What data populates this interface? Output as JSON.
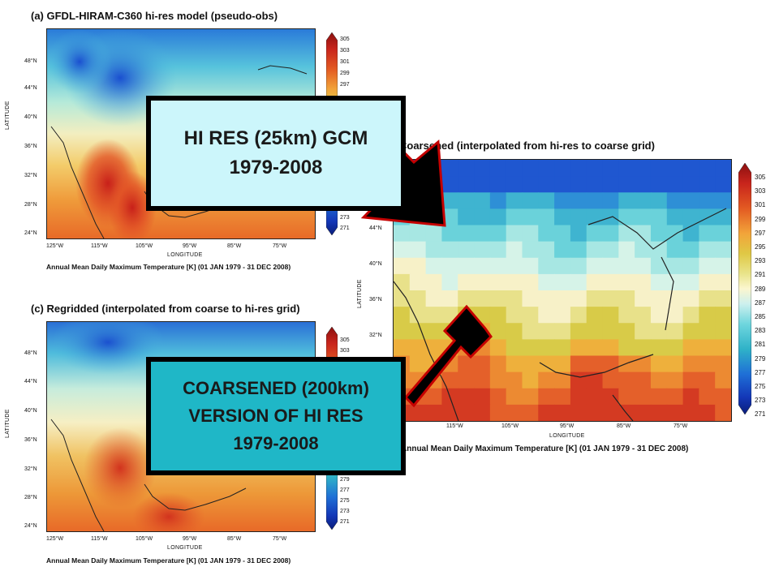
{
  "panel_a": {
    "title": "(a)  GFDL-HIRAM-C360 hi-res model (pseudo-obs)",
    "caption": "Annual Mean Daily Maximum Temperature [K]   (01 JAN 1979 - 31 DEC 2008)",
    "xlabel": "LONGITUDE",
    "ylabel": "LATITUDE",
    "lat_ticks": [
      "48°N",
      "44°N",
      "40°N",
      "36°N",
      "32°N",
      "28°N",
      "24°N"
    ],
    "lon_ticks": [
      "125°W",
      "115°W",
      "105°W",
      "95°W",
      "85°W",
      "75°W"
    ],
    "cbar_ticks": [
      "305",
      "303",
      "301",
      "299",
      "297",
      "273",
      "271"
    ]
  },
  "panel_b": {
    "title": "Coarsened (interpolated from hi-res to coarse grid)",
    "caption": "Annual Mean Daily Maximum Temperature [K]   (01 JAN 1979 - 31 DEC 2008)",
    "xlabel": "LONGITUDE",
    "ylabel": "LATITUDE",
    "lat_ticks": [
      "44°N",
      "40°N",
      "36°N",
      "32°N"
    ],
    "lon_ticks": [
      "115°W",
      "105°W",
      "95°W",
      "85°W",
      "75°W"
    ],
    "cbar_ticks": [
      "305",
      "303",
      "301",
      "299",
      "297",
      "295",
      "293",
      "291",
      "289",
      "287",
      "285",
      "283",
      "281",
      "279",
      "277",
      "275",
      "273",
      "271"
    ]
  },
  "panel_c": {
    "title": "(c)  Regridded (interpolated from coarse to hi-res grid)",
    "caption": "Annual Mean Daily Maximum Temperature [K]   (01 JAN 1979 - 31 DEC 2008)",
    "xlabel": "LONGITUDE",
    "ylabel": "LATITUDE",
    "lat_ticks": [
      "48°N",
      "44°N",
      "40°N",
      "36°N",
      "32°N",
      "28°N",
      "24°N"
    ],
    "lon_ticks": [
      "125°W",
      "115°W",
      "105°W",
      "95°W",
      "85°W",
      "75°W"
    ],
    "cbar_ticks": [
      "305",
      "303",
      "279",
      "277",
      "275",
      "273",
      "271"
    ]
  },
  "callout_top": {
    "line1": "HI RES (25km) GCM",
    "line2": "1979-2008",
    "bg": "#ccf6fb"
  },
  "callout_bottom": {
    "line1": "COARSENED (200km)",
    "line2": "VERSION OF HI RES",
    "line3": "1979-2008",
    "bg": "#1fb7c7"
  },
  "colors": {
    "arrow_fill": "#000000",
    "arrow_stroke": "#c40000"
  }
}
